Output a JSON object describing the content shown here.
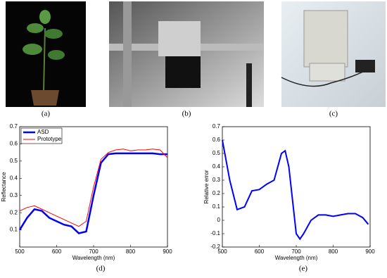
{
  "photo_labels": [
    "(a)",
    "(b)",
    "(c)"
  ],
  "chart_data": [
    {
      "type": "line",
      "caption": "(d)",
      "x_label": "Wavelength (nm)",
      "y_label": "Reflectance",
      "xlim": [
        500,
        900
      ],
      "xticks": [
        500,
        600,
        700,
        800,
        900
      ],
      "ylim": [
        0,
        0.7
      ],
      "yticks": [
        0.1,
        0.2,
        0.3,
        0.4,
        0.5,
        0.6,
        0.7
      ],
      "legend": "upper-left",
      "x": [
        500,
        520,
        540,
        560,
        580,
        600,
        620,
        640,
        660,
        680,
        700,
        720,
        740,
        760,
        780,
        800,
        820,
        840,
        860,
        880,
        900
      ],
      "series": [
        {
          "name": "ASD",
          "color": "#0000ff",
          "width": 2.5,
          "values": [
            0.1,
            0.17,
            0.22,
            0.21,
            0.17,
            0.15,
            0.13,
            0.12,
            0.08,
            0.09,
            0.3,
            0.49,
            0.54,
            0.545,
            0.545,
            0.545,
            0.545,
            0.545,
            0.545,
            0.54,
            0.54
          ]
        },
        {
          "name": "Prototype",
          "color": "#ff0000",
          "width": 1,
          "values": [
            0.21,
            0.23,
            0.24,
            0.22,
            0.2,
            0.18,
            0.16,
            0.14,
            0.12,
            0.15,
            0.35,
            0.51,
            0.55,
            0.565,
            0.57,
            0.56,
            0.565,
            0.565,
            0.57,
            0.565,
            0.52
          ]
        }
      ]
    },
    {
      "type": "line",
      "caption": "(e)",
      "x_label": "Wavelength (nm)",
      "y_label": "Relative error",
      "xlim": [
        500,
        900
      ],
      "xticks": [
        500,
        600,
        700,
        800,
        900
      ],
      "ylim": [
        -0.2,
        0.7
      ],
      "yticks": [
        -0.2,
        -0.1,
        0,
        0.1,
        0.2,
        0.3,
        0.4,
        0.5,
        0.6,
        0.7
      ],
      "x": [
        500,
        520,
        540,
        560,
        580,
        600,
        620,
        640,
        660,
        670,
        680,
        700,
        710,
        720,
        740,
        760,
        780,
        800,
        820,
        840,
        860,
        880,
        895
      ],
      "series": [
        {
          "color": "#0000ff",
          "width": 2,
          "values": [
            0.6,
            0.3,
            0.08,
            0.1,
            0.22,
            0.23,
            0.27,
            0.3,
            0.5,
            0.52,
            0.4,
            -0.1,
            -0.14,
            -0.1,
            0.0,
            0.04,
            0.04,
            0.03,
            0.04,
            0.05,
            0.05,
            0.02,
            -0.03
          ]
        }
      ]
    }
  ]
}
